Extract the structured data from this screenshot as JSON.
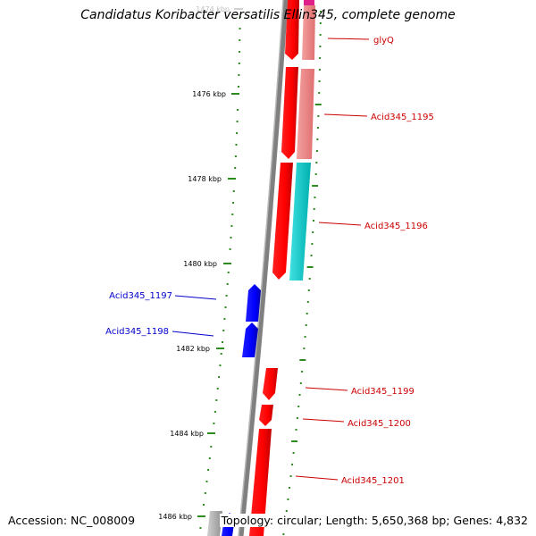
{
  "title": "Candidatus Koribacter versatilis Ellin345, complete genome",
  "ruler": {
    "ticks": [
      "1474 kbp",
      "1476 kbp",
      "1478 kbp",
      "1480 kbp",
      "1482 kbp",
      "1484 kbp",
      "1486 kbp"
    ]
  },
  "genes": [
    {
      "name": "glyQ",
      "strand": "+",
      "color": "#cc0000"
    },
    {
      "name": "Acid345_1195",
      "strand": "+",
      "color": "#cc0000"
    },
    {
      "name": "Acid345_1196",
      "strand": "+",
      "color": "#cc0000"
    },
    {
      "name": "Acid345_1197",
      "strand": "-",
      "color": "#0000cc"
    },
    {
      "name": "Acid345_1198",
      "strand": "-",
      "color": "#0000cc"
    },
    {
      "name": "Acid345_1199",
      "strand": "+",
      "color": "#cc0000"
    },
    {
      "name": "Acid345_1200",
      "strand": "+",
      "color": "#cc0000"
    },
    {
      "name": "Acid345_1201",
      "strand": "+",
      "color": "#cc0000"
    }
  ],
  "footer": {
    "accession": "Accession: NC_008009",
    "topology": "Topology: circular; Length: 5,650,368 bp; Genes: 4,832"
  },
  "colors": {
    "forward_gene": "#ff0000",
    "reverse_gene": "#0000ff",
    "forward_label": "#cc0000",
    "reverse_label": "#0000cc",
    "pink_track": "#f08080",
    "cyan_track": "#00cccc",
    "gc_dots": "#2e8b20",
    "backbone": "#808080"
  }
}
